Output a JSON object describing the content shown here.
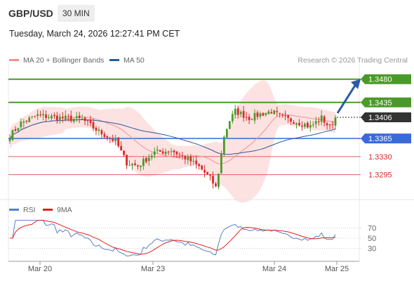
{
  "header": {
    "symbol": "GBP/USD",
    "timeframe": "30 MIN",
    "timestamp": "Tuesday, March 24, 2026 12:27:41 PM CET"
  },
  "legend": {
    "ma20": {
      "label": "MA 20 + Bollinger Bands",
      "color": "#f4918c"
    },
    "ma50": {
      "label": "MA 50",
      "color": "#2a5a9a"
    },
    "credit": "Research © 2026 Trading Central"
  },
  "rsi_legend": {
    "rsi": {
      "label": "RSI",
      "color": "#5a80c8"
    },
    "ma9": {
      "label": "9MA",
      "color": "#e02020"
    }
  },
  "colors": {
    "up": "#4a9a2a",
    "down": "#d82a2a",
    "resistance": "#4a9a2a",
    "pivot": "#3a6ad8",
    "support": "#e06060",
    "band": "#fde2e2",
    "arrow": "#2a5aa8",
    "current": "#333333"
  },
  "chart_data": [
    {
      "type": "candlestick",
      "title": "",
      "x_ticks": [
        "Mar 20",
        "Mar 23",
        "Mar 24",
        "Mar 25"
      ],
      "ylim": [
        1.3255,
        1.35
      ],
      "levels": [
        {
          "label": "1.3480",
          "value": 1.348,
          "kind": "resistance"
        },
        {
          "label": "1.3435",
          "value": 1.3435,
          "kind": "resistance"
        },
        {
          "label": "1.3406",
          "value": 1.3406,
          "kind": "current"
        },
        {
          "label": "1.3365",
          "value": 1.3365,
          "kind": "pivot"
        },
        {
          "label": "1.3330",
          "value": 1.333,
          "kind": "support"
        },
        {
          "label": "1.3295",
          "value": 1.3295,
          "kind": "support"
        }
      ],
      "forecast_target": 1.348
    },
    {
      "type": "line",
      "title": "",
      "series": [
        {
          "name": "RSI"
        },
        {
          "name": "9MA"
        }
      ],
      "y_ticks": [
        "70",
        "50",
        "30"
      ],
      "ylim": [
        10,
        90
      ]
    }
  ]
}
